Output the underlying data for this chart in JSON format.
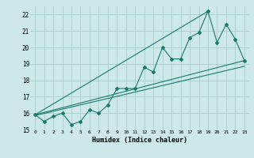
{
  "title": "",
  "xlabel": "Humidex (Indice chaleur)",
  "bg_color": "#cce8e8",
  "grid_color": "#aacccc",
  "line_color": "#1a7a6e",
  "xlim": [
    -0.5,
    23.5
  ],
  "ylim": [
    15,
    22.5
  ],
  "yticks": [
    15,
    16,
    17,
    18,
    19,
    20,
    21,
    22
  ],
  "xtick_labels": [
    "0",
    "1",
    "2",
    "3",
    "4",
    "5",
    "6",
    "7",
    "8",
    "9",
    "10",
    "11",
    "12",
    "13",
    "14",
    "15",
    "16",
    "17",
    "18",
    "19",
    "20",
    "21",
    "22",
    "23"
  ],
  "line1_x": [
    0,
    1,
    2,
    3,
    4,
    5,
    6,
    7,
    8,
    9,
    10,
    11,
    12,
    13,
    14,
    15,
    16,
    17,
    18,
    19,
    20,
    21,
    22,
    23
  ],
  "line1_y": [
    15.9,
    15.5,
    15.8,
    16.0,
    15.3,
    15.5,
    16.2,
    16.0,
    16.5,
    17.5,
    17.5,
    17.5,
    18.8,
    18.5,
    20.0,
    19.3,
    19.3,
    20.6,
    20.9,
    22.2,
    20.3,
    21.4,
    20.5,
    19.2
  ],
  "line2_x": [
    0,
    23
  ],
  "line2_y": [
    15.9,
    19.2
  ],
  "line3_x": [
    0,
    19
  ],
  "line3_y": [
    15.9,
    22.2
  ],
  "line4_x": [
    0,
    23
  ],
  "line4_y": [
    15.85,
    18.85
  ]
}
